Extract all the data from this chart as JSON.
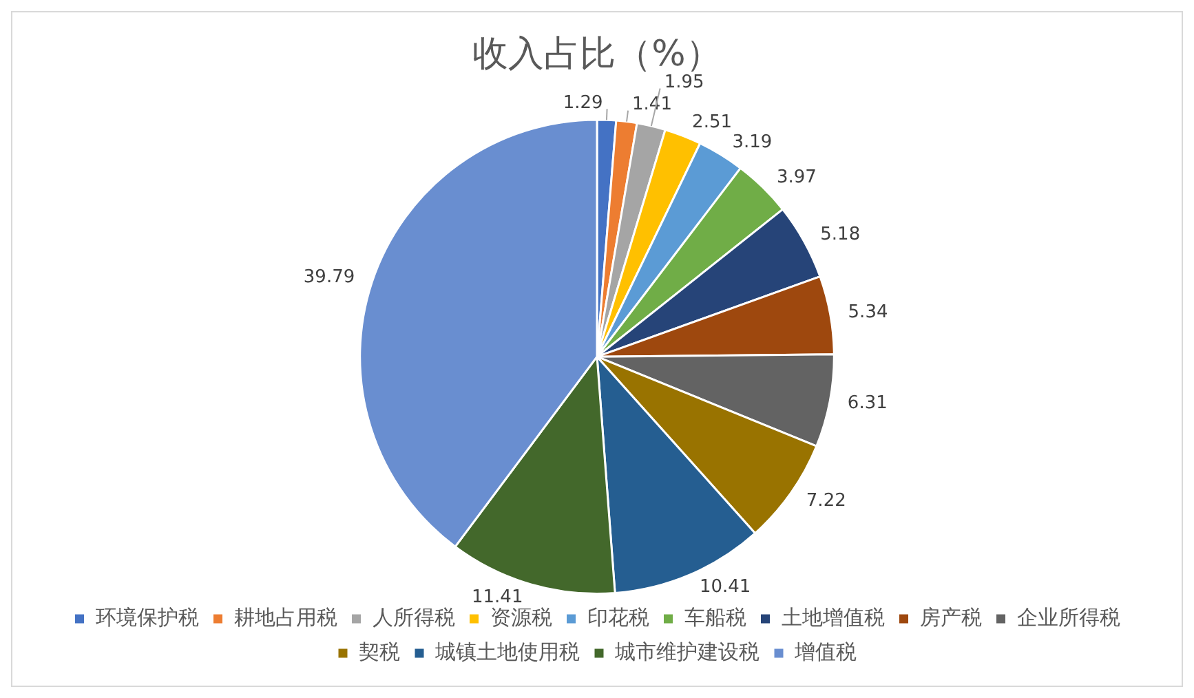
{
  "chart_data": {
    "type": "pie",
    "title": "收入占比（%）",
    "categories": [
      "环境保护税",
      "耕地占用税",
      "人所得税",
      "资源税",
      "印花税",
      "车船税",
      "土地增值税",
      "房产税",
      "企业所得税",
      "契税",
      "城镇土地使用税",
      "城市维护建设税",
      "增值税"
    ],
    "values": [
      1.29,
      1.41,
      1.95,
      2.51,
      3.19,
      3.97,
      5.18,
      5.34,
      6.31,
      7.22,
      10.41,
      11.41,
      39.79
    ],
    "colors": [
      "#4472c4",
      "#ed7d31",
      "#a5a5a5",
      "#ffc000",
      "#5b9bd5",
      "#70ad47",
      "#264478",
      "#9e480e",
      "#636363",
      "#997300",
      "#255e91",
      "#43682b",
      "#698ed0"
    ],
    "data_labels": true,
    "legend": "bottom"
  }
}
